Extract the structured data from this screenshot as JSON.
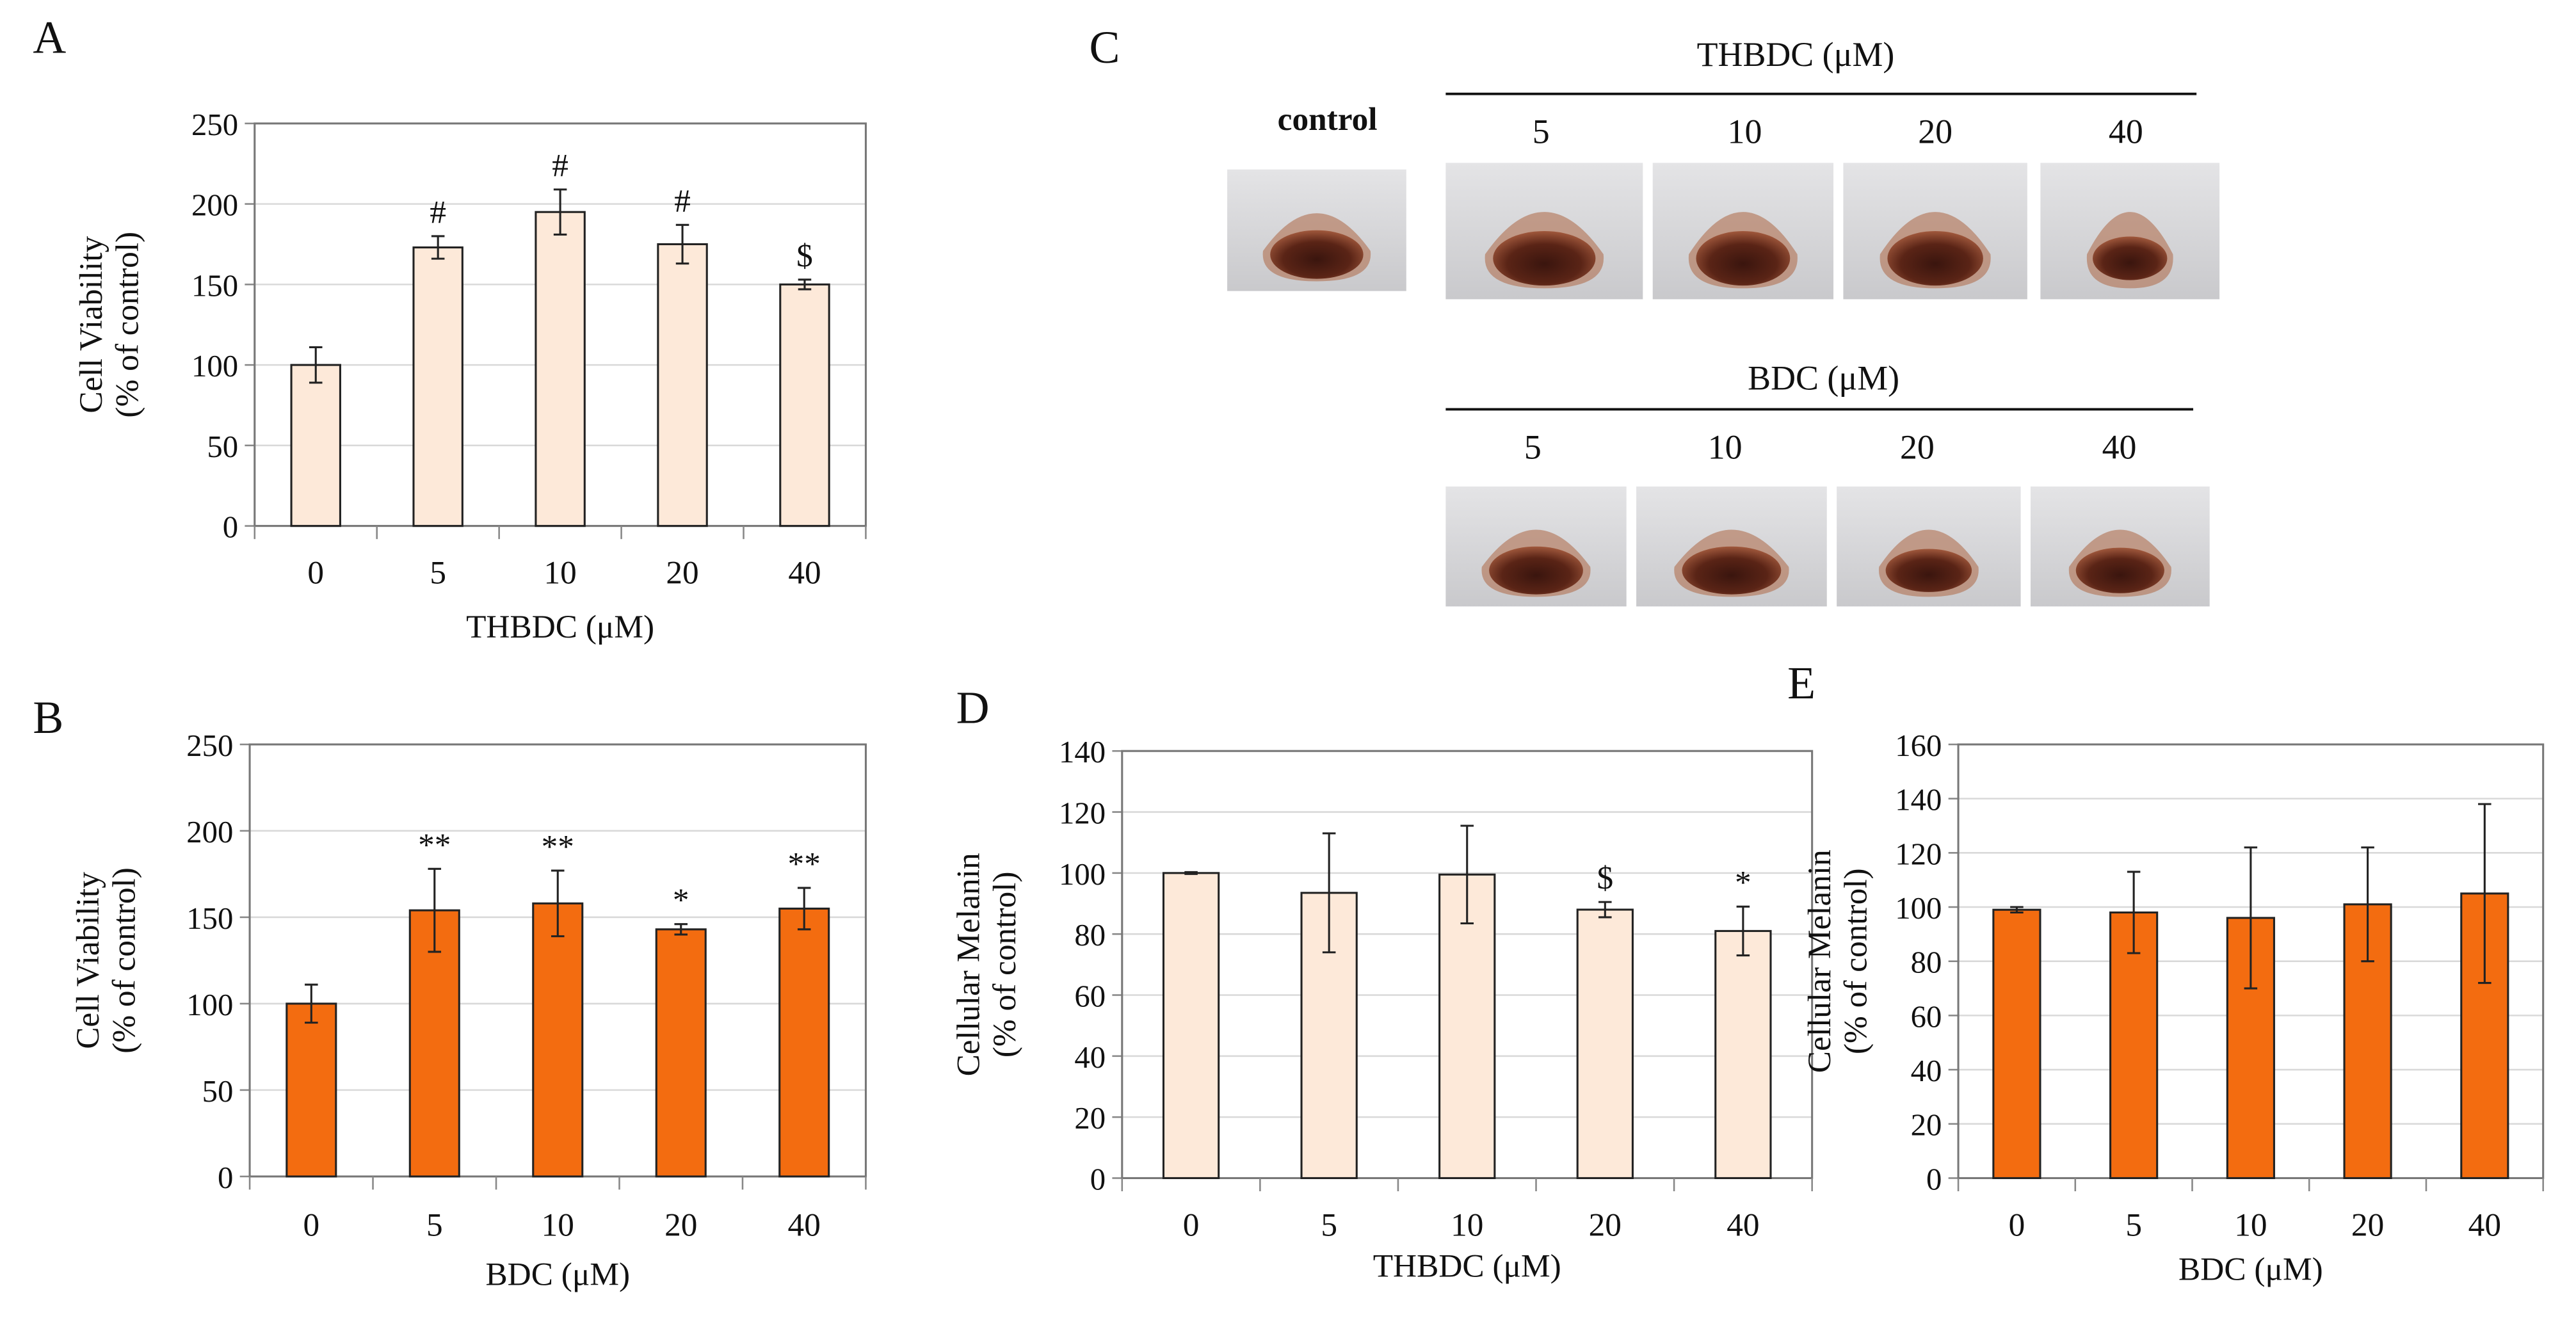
{
  "panel_labels": {
    "a": "A",
    "b": "B",
    "c": "C",
    "d": "D",
    "e": "E"
  },
  "panel_c": {
    "control_label": "control",
    "thbdc_header": "THBDC (μM)",
    "thbdc_doses": [
      "5",
      "10",
      "20",
      "40"
    ],
    "bdc_header": "BDC (μM)",
    "bdc_doses": [
      "5",
      "10",
      "20",
      "40"
    ],
    "pellet_color": "#4a1f14"
  },
  "chart_data": [
    {
      "id": "A",
      "type": "bar",
      "categories": [
        "0",
        "5",
        "10",
        "20",
        "40"
      ],
      "values": [
        100,
        173,
        195,
        175,
        150
      ],
      "errors": [
        11,
        7,
        14,
        12,
        3
      ],
      "annotations": [
        "",
        "#",
        "#",
        "#",
        "$"
      ],
      "xlabel": "THBDC (μM)",
      "ylabel": [
        "Cell Viability",
        "(% of control)"
      ],
      "ylim": [
        0,
        250
      ],
      "yticks": [
        "0",
        "50",
        "100",
        "150",
        "200",
        "250"
      ],
      "grid": true,
      "color": "#fde9d9"
    },
    {
      "id": "B",
      "type": "bar",
      "categories": [
        "0",
        "5",
        "10",
        "20",
        "40"
      ],
      "values": [
        100,
        154,
        158,
        143,
        155
      ],
      "errors": [
        11,
        24,
        19,
        3,
        12
      ],
      "annotations": [
        "",
        "**",
        "**",
        "*",
        "**"
      ],
      "xlabel": "BDC (μM)",
      "ylabel": [
        "Cell Viability",
        "(% of control)"
      ],
      "ylim": [
        0,
        250
      ],
      "yticks": [
        "0",
        "50",
        "100",
        "150",
        "200",
        "250"
      ],
      "grid": true,
      "color": "#f36c10"
    },
    {
      "id": "D",
      "type": "bar",
      "categories": [
        "0",
        "5",
        "10",
        "20",
        "40"
      ],
      "values": [
        100,
        93.5,
        99.5,
        88,
        81
      ],
      "errors": [
        0.3,
        19.5,
        16,
        2.5,
        8
      ],
      "annotations": [
        "",
        "",
        "",
        "$",
        "*"
      ],
      "xlabel": "THBDC (μM)",
      "ylabel": [
        "Cellular Melanin",
        "(% of control)"
      ],
      "ylim": [
        0,
        140
      ],
      "yticks": [
        "0",
        "20",
        "40",
        "60",
        "80",
        "100",
        "120",
        "140"
      ],
      "grid": true,
      "color": "#fde9d9"
    },
    {
      "id": "E",
      "type": "bar",
      "categories": [
        "0",
        "5",
        "10",
        "20",
        "40"
      ],
      "values": [
        99,
        98,
        96,
        101,
        105
      ],
      "errors": [
        1,
        15,
        26,
        21,
        33
      ],
      "annotations": [
        "",
        "",
        "",
        "",
        ""
      ],
      "xlabel": "BDC (μM)",
      "ylabel": [
        "Cellular Melanin",
        "(% of control)"
      ],
      "ylim": [
        0,
        160
      ],
      "yticks": [
        "0",
        "20",
        "40",
        "60",
        "80",
        "100",
        "120",
        "140",
        "160"
      ],
      "grid": true,
      "color": "#f36c10"
    }
  ]
}
